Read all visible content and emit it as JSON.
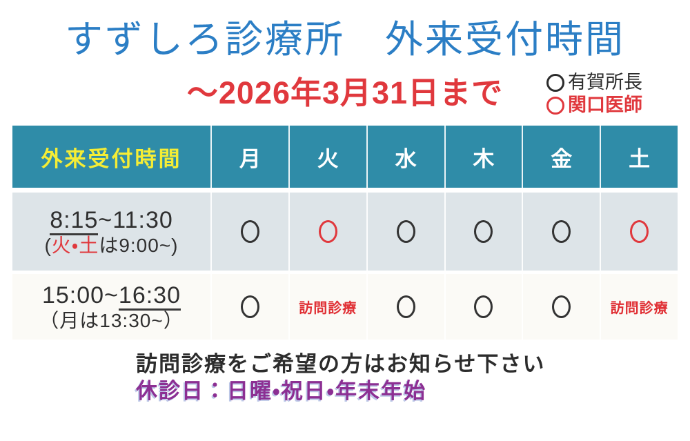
{
  "page": {
    "title": "すずしろ診療所　外来受付時間",
    "subtitle": "～2026年3月31日まで"
  },
  "legend": {
    "items": [
      {
        "symbol": "black-circle-icon",
        "label": "有賀所長",
        "color": "#2b2b2b"
      },
      {
        "symbol": "red-circle-icon",
        "label": "関口医師",
        "color": "#e0383d"
      }
    ]
  },
  "table": {
    "header": {
      "label": "外来受付時間",
      "days": [
        "月",
        "火",
        "水",
        "木",
        "金",
        "土"
      ]
    },
    "rows": [
      {
        "time_segments": [
          {
            "text": "8:15",
            "underline": true
          },
          {
            "text": "~11:30",
            "underline": false
          }
        ],
        "note_segments": [
          {
            "text": "(",
            "red": false
          },
          {
            "text": "火・土",
            "red": true
          },
          {
            "text": "は9:00~)",
            "red": false
          }
        ],
        "cells": [
          "circle-black",
          "circle-red",
          "circle-black",
          "circle-black",
          "circle-black",
          "circle-red"
        ]
      },
      {
        "time_segments": [
          {
            "text": "15:00~",
            "underline": false
          },
          {
            "text": "16:30",
            "underline": true
          }
        ],
        "note_segments": [
          {
            "text": "（月は13:30~）",
            "red": false
          }
        ],
        "cells": [
          "circle-black",
          "visit",
          "circle-black",
          "circle-black",
          "circle-black",
          "visit"
        ]
      }
    ],
    "visit_label": "訪問診療"
  },
  "footer": {
    "line1": "訪問診療をご希望の方はお知らせ下さい",
    "line2": "休診日：日曜・祝日・年末年始"
  },
  "colors": {
    "title_blue": "#2b7ec5",
    "accent_red": "#e0383d",
    "header_teal": "#2f8ca8",
    "header_yellow": "#f5ed35",
    "row1_bg": "#dde4e8",
    "row2_bg": "#fbfaf6",
    "closed_purple": "#8c2f93",
    "ink_black": "#2f2f2f"
  }
}
